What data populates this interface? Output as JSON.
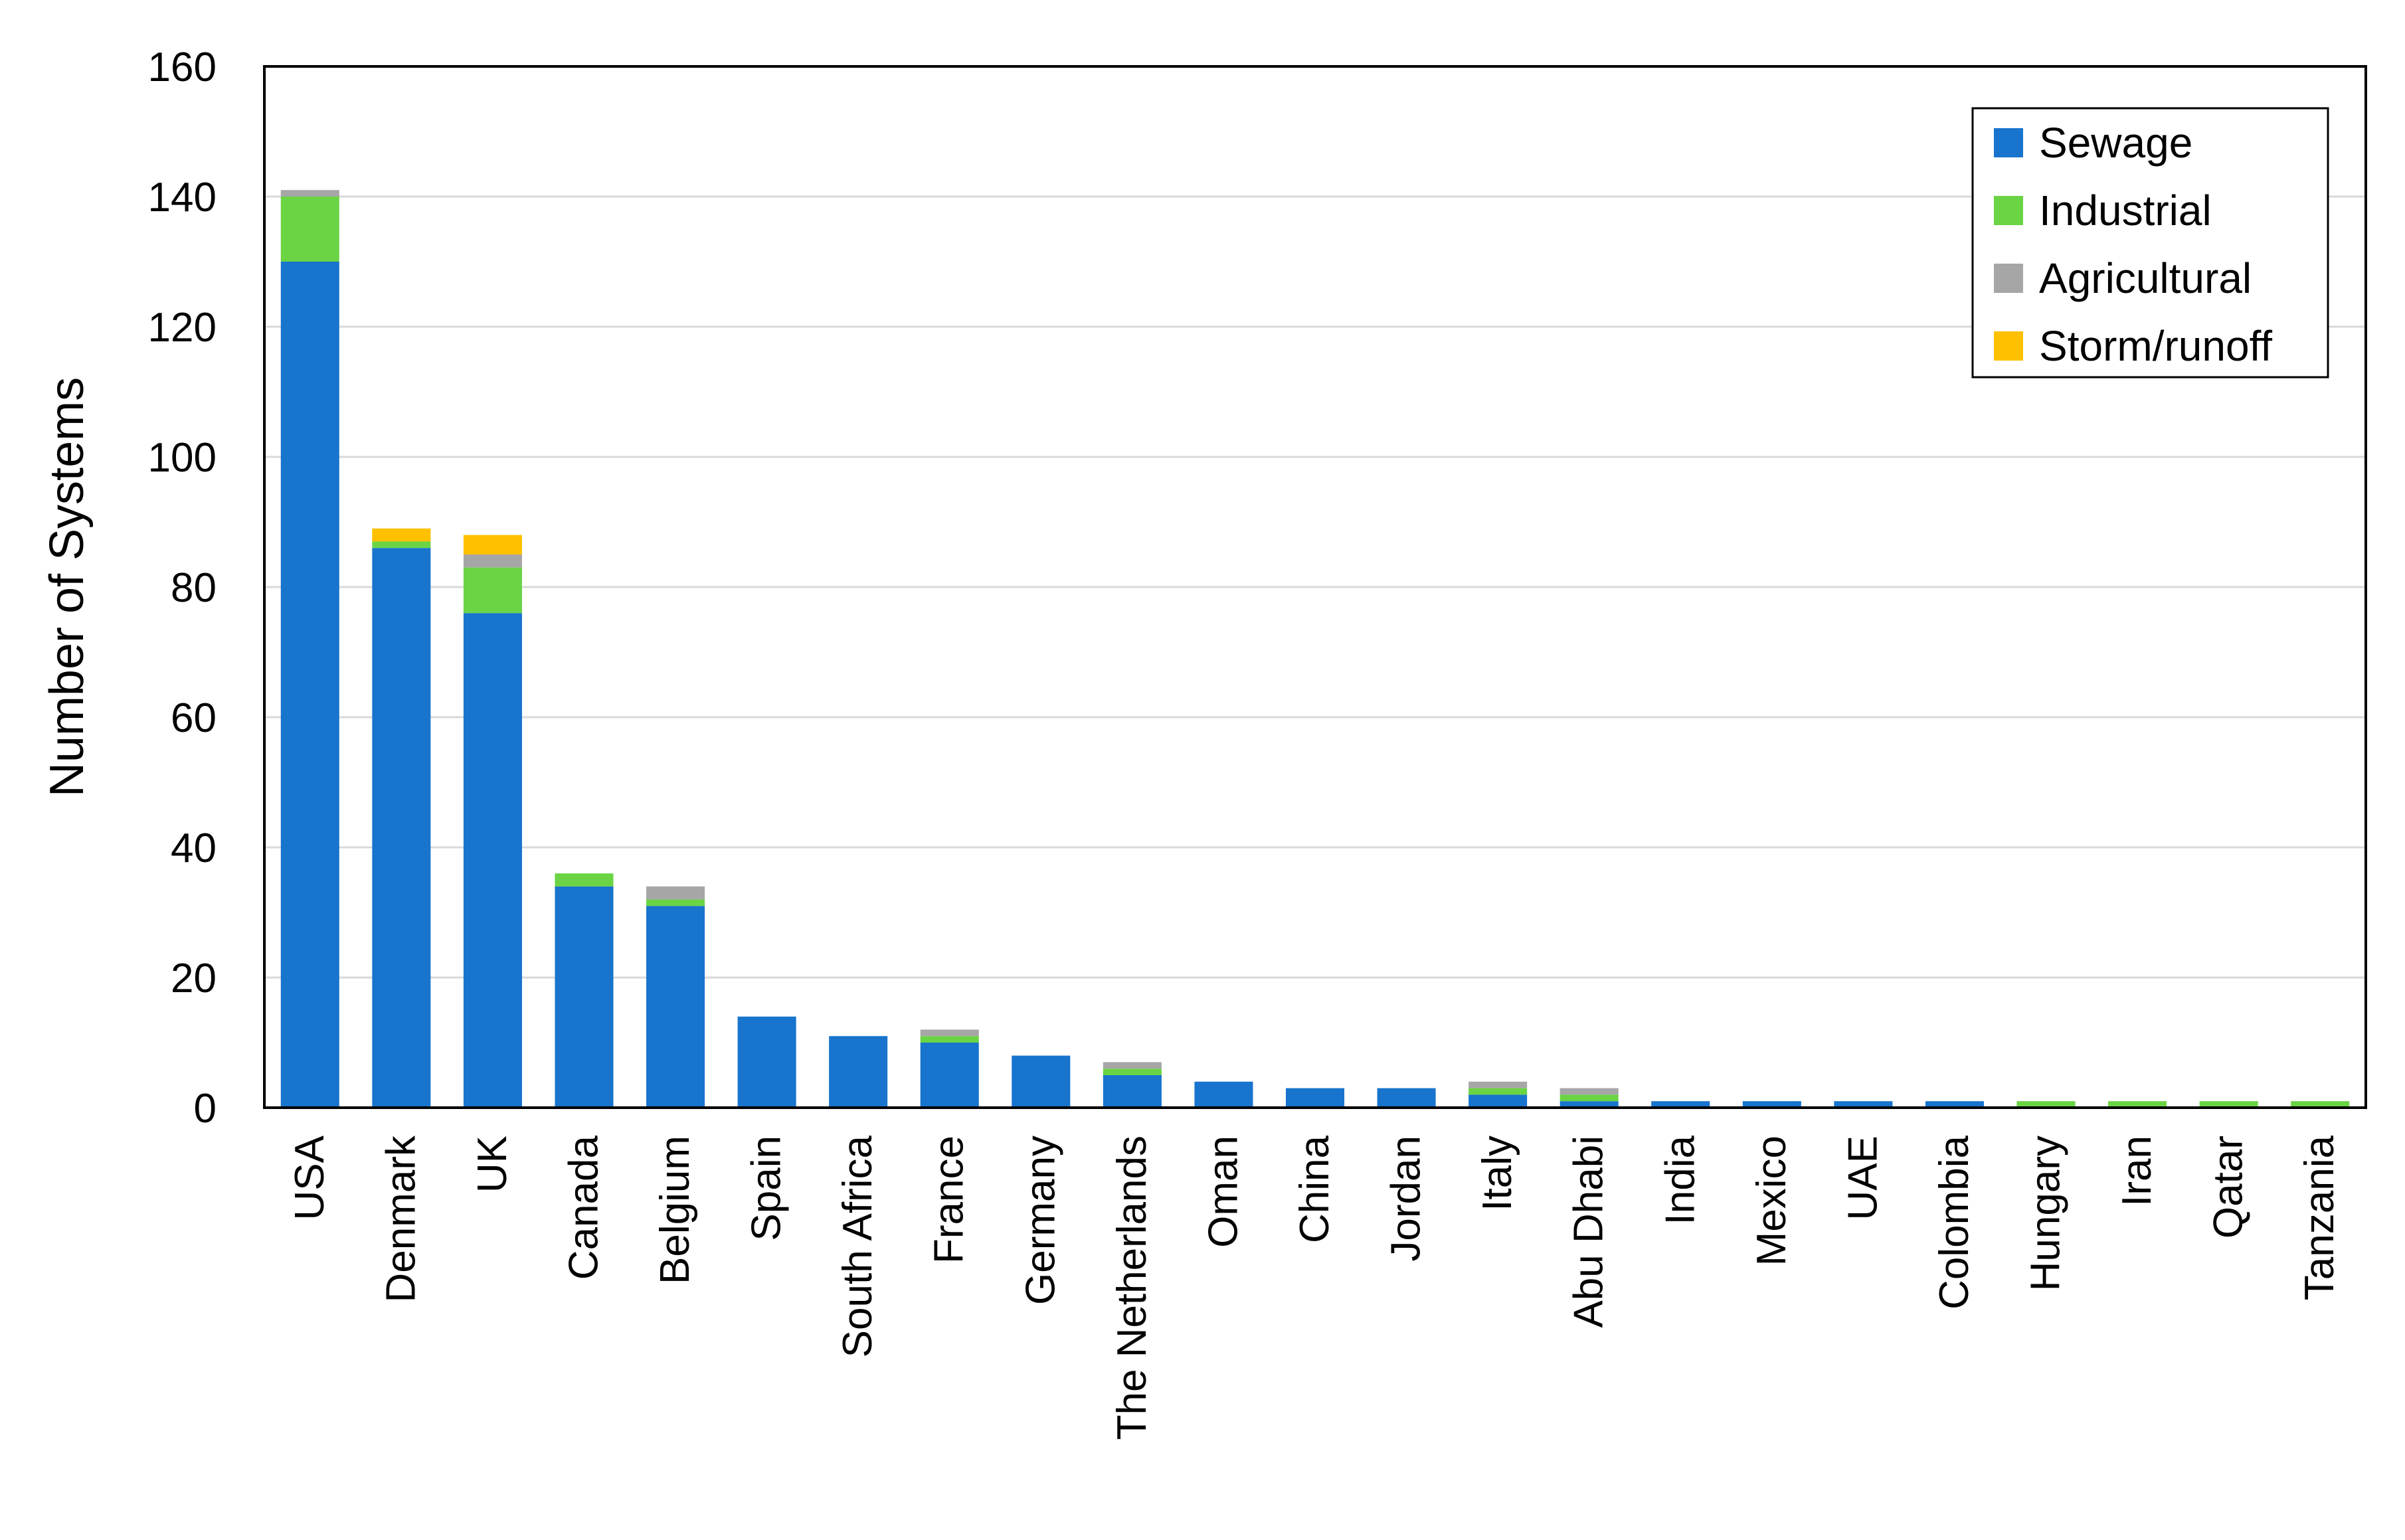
{
  "chart_data": {
    "type": "bar",
    "stacked": true,
    "title": "",
    "xlabel": "",
    "ylabel": "Number of Systems",
    "ylim": [
      0,
      160
    ],
    "yticks": [
      0,
      20,
      40,
      60,
      80,
      100,
      120,
      140,
      160
    ],
    "grid": "horizontal",
    "legend_position": "top-right",
    "categories": [
      "USA",
      "Denmark",
      "UK",
      "Canada",
      "Belgium",
      "Spain",
      "South Africa",
      "France",
      "Germany",
      "The Netherlands",
      "Oman",
      "China",
      "Jordan",
      "Italy",
      "Abu Dhabi",
      "India",
      "Mexico",
      "UAE",
      "Colombia",
      "Hungary",
      "Iran",
      "Qatar",
      "Tanzania"
    ],
    "series": [
      {
        "name": "Sewage",
        "color": "#1874CD",
        "values": [
          130,
          86,
          76,
          34,
          31,
          14,
          11,
          10,
          8,
          5,
          4,
          3,
          3,
          2,
          1,
          1,
          1,
          1,
          1,
          0,
          0,
          0,
          0
        ]
      },
      {
        "name": "Industrial",
        "color": "#6AD444",
        "values": [
          10,
          1,
          7,
          2,
          1,
          0,
          0,
          1,
          0,
          1,
          0,
          0,
          0,
          1,
          1,
          0,
          0,
          0,
          0,
          1,
          1,
          1,
          1
        ]
      },
      {
        "name": "Agricultural",
        "color": "#A6A6A6",
        "values": [
          1,
          0,
          2,
          0,
          2,
          0,
          0,
          1,
          0,
          1,
          0,
          0,
          0,
          1,
          1,
          0,
          0,
          0,
          0,
          0,
          0,
          0,
          0
        ]
      },
      {
        "name": "Storm/runoff",
        "color": "#FFC000",
        "values": [
          0,
          2,
          3,
          0,
          0,
          0,
          0,
          0,
          0,
          0,
          0,
          0,
          0,
          0,
          0,
          0,
          0,
          0,
          0,
          0,
          0,
          0,
          0
        ]
      }
    ]
  }
}
